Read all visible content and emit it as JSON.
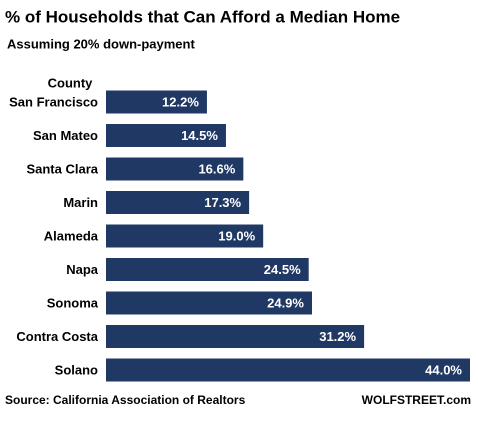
{
  "chart_data": {
    "type": "bar",
    "orientation": "horizontal",
    "title": "% of Households that Can Afford a Median Home",
    "subtitle": "Assuming 20% down-payment",
    "y_label": "County",
    "categories": [
      "San Francisco",
      "San Mateo",
      "Santa Clara",
      "Marin",
      "Alameda",
      "Napa",
      "Sonoma",
      "Contra Costa",
      "Solano"
    ],
    "values": [
      12.2,
      14.5,
      16.6,
      17.3,
      19.0,
      24.5,
      24.9,
      31.2,
      44.0
    ],
    "value_labels": [
      "12.2%",
      "14.5%",
      "16.6%",
      "17.3%",
      "19.0%",
      "24.5%",
      "24.9%",
      "31.2%",
      "44.0%"
    ],
    "color": "#1f3864",
    "source": "Source: California Association of Realtors",
    "credit": "WOLFSTREET.com"
  }
}
